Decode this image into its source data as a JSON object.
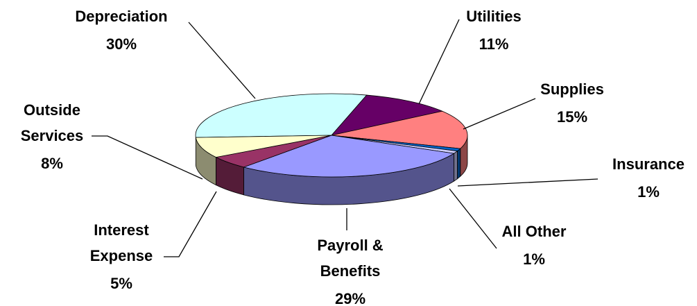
{
  "chart_data": {
    "type": "pie",
    "categories": [
      "Depreciation",
      "Utilities",
      "Supplies",
      "Insurance",
      "All Other",
      "Payroll &\nBenefits",
      "Interest\nExpense",
      "Outside\nServices"
    ],
    "values": [
      30,
      11,
      15,
      1,
      1,
      29,
      5,
      8
    ],
    "value_labels": [
      "30%",
      "11%",
      "15%",
      "1%",
      "1%",
      "29%",
      "5%",
      "8%"
    ],
    "colors": [
      "#ccffff",
      "#660066",
      "#ff8080",
      "#0066cc",
      "#ccccff",
      "#9999ff",
      "#993366",
      "#ffffcc"
    ]
  }
}
